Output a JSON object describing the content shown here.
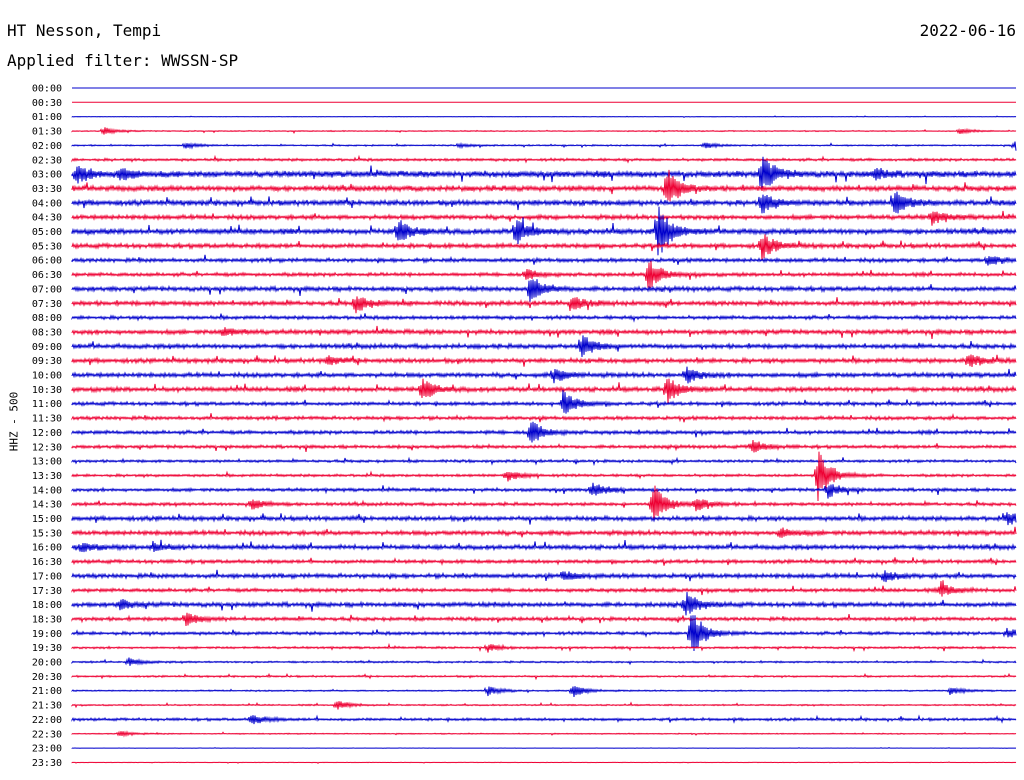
{
  "header": {
    "station": "HT Nesson, Tempi",
    "date": "2022-06-16",
    "filter": "Applied filter: WWSSN-SP"
  },
  "chart_data": {
    "type": "line",
    "ylabel": "HHZ - 500",
    "rows": [
      "00:00",
      "00:30",
      "01:00",
      "01:30",
      "02:00",
      "02:30",
      "03:00",
      "03:30",
      "04:00",
      "04:30",
      "05:00",
      "05:30",
      "06:00",
      "06:30",
      "07:00",
      "07:30",
      "08:00",
      "08:30",
      "09:00",
      "09:30",
      "10:00",
      "10:30",
      "11:00",
      "11:30",
      "12:00",
      "12:30",
      "13:00",
      "13:30",
      "14:00",
      "14:30",
      "15:00",
      "15:30",
      "16:00",
      "16:30",
      "17:00",
      "17:30",
      "18:00",
      "18:30",
      "19:00",
      "19:30",
      "20:00",
      "20:30",
      "21:00",
      "21:30",
      "22:00",
      "22:30",
      "23:00",
      "23:30"
    ],
    "series_colors": [
      "#0000cc",
      "#ee0033"
    ],
    "noise": [
      0,
      0,
      0.3,
      0.6,
      0.8,
      1.5,
      3.5,
      3,
      3,
      2.5,
      3,
      2.5,
      2.2,
      2,
      2.5,
      2.5,
      2,
      2.5,
      2.5,
      2.5,
      2.5,
      2.5,
      2,
      2,
      2,
      1.8,
      1.5,
      1.5,
      1.8,
      1.8,
      2.5,
      2.5,
      2.5,
      2,
      2.5,
      2,
      2.5,
      2,
      1.8,
      1.2,
      1,
      1,
      0.8,
      0.8,
      1.5,
      0.6,
      0.2,
      0.3
    ],
    "events": [
      {
        "row": 3,
        "x": 0.033,
        "amp": 4
      },
      {
        "row": 3,
        "x": 0.94,
        "amp": 3
      },
      {
        "row": 4,
        "x": 0.12,
        "amp": 3
      },
      {
        "row": 4,
        "x": 0.41,
        "amp": 2
      },
      {
        "row": 4,
        "x": 0.67,
        "amp": 3
      },
      {
        "row": 4,
        "x": 0.998,
        "amp": 6
      },
      {
        "row": 6,
        "x": 0.005,
        "amp": 9
      },
      {
        "row": 6,
        "x": 0.05,
        "amp": 8
      },
      {
        "row": 6,
        "x": 0.73,
        "amp": 20
      },
      {
        "row": 6,
        "x": 0.85,
        "amp": 6
      },
      {
        "row": 7,
        "x": 0.63,
        "amp": 22
      },
      {
        "row": 8,
        "x": 0.73,
        "amp": 12
      },
      {
        "row": 8,
        "x": 0.87,
        "amp": 14
      },
      {
        "row": 9,
        "x": 0.91,
        "amp": 8
      },
      {
        "row": 10,
        "x": 0.345,
        "amp": 12
      },
      {
        "row": 10,
        "x": 0.47,
        "amp": 14
      },
      {
        "row": 10,
        "x": 0.62,
        "amp": 30
      },
      {
        "row": 11,
        "x": 0.73,
        "amp": 14
      },
      {
        "row": 12,
        "x": 0.97,
        "amp": 6
      },
      {
        "row": 13,
        "x": 0.61,
        "amp": 16
      },
      {
        "row": 13,
        "x": 0.48,
        "amp": 6
      },
      {
        "row": 14,
        "x": 0.485,
        "amp": 16
      },
      {
        "row": 15,
        "x": 0.3,
        "amp": 10
      },
      {
        "row": 15,
        "x": 0.53,
        "amp": 8
      },
      {
        "row": 17,
        "x": 0.16,
        "amp": 5
      },
      {
        "row": 18,
        "x": 0.54,
        "amp": 12
      },
      {
        "row": 19,
        "x": 0.95,
        "amp": 8
      },
      {
        "row": 19,
        "x": 0.27,
        "amp": 5
      },
      {
        "row": 20,
        "x": 0.51,
        "amp": 8
      },
      {
        "row": 20,
        "x": 0.65,
        "amp": 9
      },
      {
        "row": 21,
        "x": 0.37,
        "amp": 12
      },
      {
        "row": 21,
        "x": 0.63,
        "amp": 14
      },
      {
        "row": 22,
        "x": 0.52,
        "amp": 14
      },
      {
        "row": 24,
        "x": 0.485,
        "amp": 14
      },
      {
        "row": 25,
        "x": 0.72,
        "amp": 7
      },
      {
        "row": 27,
        "x": 0.79,
        "amp": 26
      },
      {
        "row": 27,
        "x": 0.46,
        "amp": 6
      },
      {
        "row": 28,
        "x": 0.55,
        "amp": 8
      },
      {
        "row": 28,
        "x": 0.8,
        "amp": 8
      },
      {
        "row": 29,
        "x": 0.615,
        "amp": 22
      },
      {
        "row": 29,
        "x": 0.66,
        "amp": 8
      },
      {
        "row": 29,
        "x": 0.19,
        "amp": 6
      },
      {
        "row": 30,
        "x": 0.99,
        "amp": 6
      },
      {
        "row": 31,
        "x": 0.75,
        "amp": 5
      },
      {
        "row": 32,
        "x": 0.01,
        "amp": 5
      },
      {
        "row": 32,
        "x": 0.085,
        "amp": 5
      },
      {
        "row": 34,
        "x": 0.52,
        "amp": 5
      },
      {
        "row": 34,
        "x": 0.86,
        "amp": 5
      },
      {
        "row": 35,
        "x": 0.92,
        "amp": 8
      },
      {
        "row": 36,
        "x": 0.65,
        "amp": 12
      },
      {
        "row": 36,
        "x": 0.05,
        "amp": 5
      },
      {
        "row": 37,
        "x": 0.12,
        "amp": 7
      },
      {
        "row": 38,
        "x": 0.655,
        "amp": 26
      },
      {
        "row": 38,
        "x": 0.99,
        "amp": 5
      },
      {
        "row": 39,
        "x": 0.44,
        "amp": 4
      },
      {
        "row": 40,
        "x": 0.06,
        "amp": 4
      },
      {
        "row": 42,
        "x": 0.44,
        "amp": 5
      },
      {
        "row": 42,
        "x": 0.53,
        "amp": 7
      },
      {
        "row": 42,
        "x": 0.93,
        "amp": 4
      },
      {
        "row": 43,
        "x": 0.28,
        "amp": 5
      },
      {
        "row": 44,
        "x": 0.19,
        "amp": 6
      },
      {
        "row": 45,
        "x": 0.05,
        "amp": 3
      }
    ]
  }
}
